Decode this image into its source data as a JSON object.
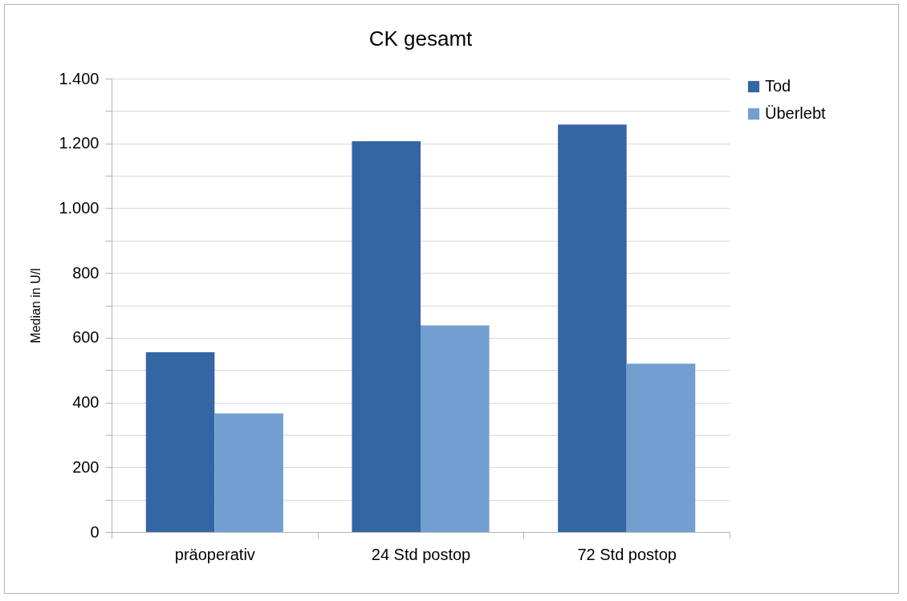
{
  "chart_data": {
    "type": "bar",
    "title": "CK gesamt",
    "ylabel": "Median in U/l",
    "categories": [
      "präoperativ",
      "24 Std postop",
      "72 Std postop"
    ],
    "series": [
      {
        "name": "Tod",
        "color": "#3465a4",
        "values": [
          555,
          1207,
          1258
        ]
      },
      {
        "name": "Überlebt",
        "color": "#729fcf",
        "values": [
          366,
          638,
          520
        ]
      }
    ],
    "ylim": [
      0,
      1400
    ],
    "yticks": [
      0,
      {
        "value": 100,
        "label": null
      },
      200,
      {
        "value": 300,
        "label": null
      },
      400,
      {
        "value": 500,
        "label": null
      },
      600,
      {
        "value": 700,
        "label": null
      },
      800,
      {
        "value": 900,
        "label": null
      },
      {
        "value": 1000,
        "label": "1.000"
      },
      {
        "value": 1100,
        "label": null
      },
      {
        "value": 1200,
        "label": "1.200"
      },
      {
        "value": 1300,
        "label": null
      },
      {
        "value": 1400,
        "label": "1.400"
      }
    ],
    "grid": true,
    "legend": "right"
  }
}
